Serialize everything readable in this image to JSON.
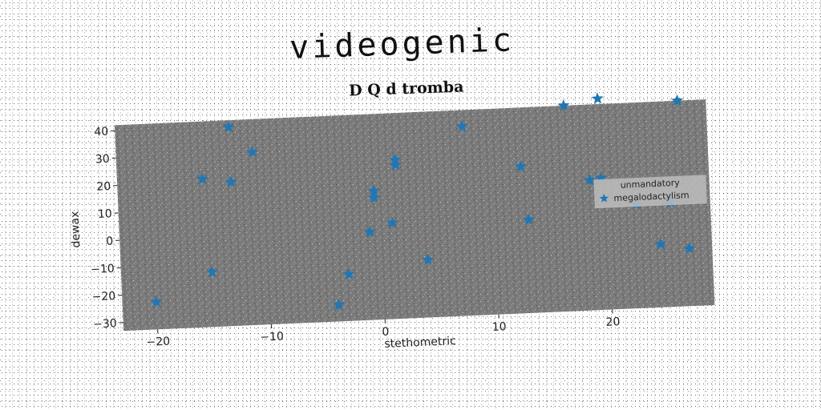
{
  "chart_data": {
    "type": "scatter",
    "suptitle": "videogenic",
    "title": "D Q d tromba",
    "xlabel": "stethometric",
    "ylabel": "dewax",
    "xlim": [
      -23,
      29
    ],
    "ylim": [
      -33,
      42
    ],
    "xticks": [
      -20,
      -10,
      0,
      10,
      20
    ],
    "yticks": [
      -30,
      -20,
      -10,
      0,
      10,
      20,
      30,
      40
    ],
    "grid": false,
    "legend": {
      "title": "unmandatory",
      "entries": [
        "megalodactylism"
      ],
      "placement": "center-right"
    },
    "series": [
      {
        "name": "megalodactylism",
        "color": "#1f77b4",
        "marker": "star",
        "points": [
          [
            -20,
            -23
          ],
          [
            -15.5,
            21
          ],
          [
            -15,
            -13
          ],
          [
            -13,
            39.5
          ],
          [
            -13,
            19.5
          ],
          [
            -11,
            30
          ],
          [
            -3,
            -16
          ],
          [
            -4,
            -27
          ],
          [
            -1,
            -1
          ],
          [
            -0.5,
            14
          ],
          [
            -0.5,
            11.5
          ],
          [
            1,
            2
          ],
          [
            1.5,
            25
          ],
          [
            1.5,
            23
          ],
          [
            4,
            -12
          ],
          [
            7.5,
            36
          ],
          [
            12.5,
            20.5
          ],
          [
            13,
            1
          ],
          [
            16.5,
            42
          ],
          [
            19.5,
            44
          ],
          [
            18.5,
            14.5
          ],
          [
            19.5,
            15
          ],
          [
            22.5,
            5
          ],
          [
            24.5,
            -10
          ],
          [
            25.5,
            5
          ],
          [
            26.5,
            42
          ],
          [
            27,
            -12
          ]
        ]
      }
    ]
  }
}
